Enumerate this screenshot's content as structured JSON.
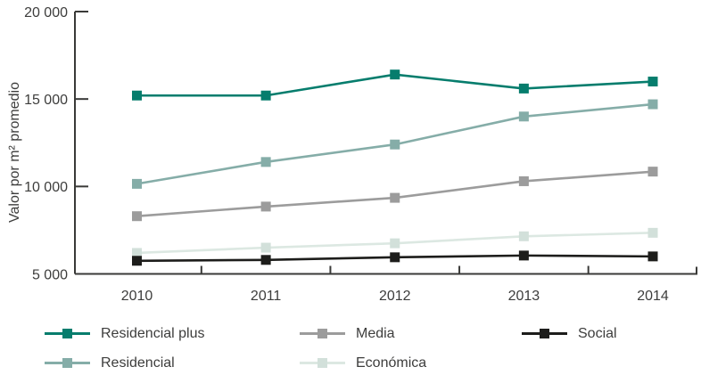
{
  "chart_data": {
    "type": "line",
    "title": "",
    "xlabel": "",
    "ylabel": "Valor por m² promedio",
    "categories": [
      "2010",
      "2011",
      "2012",
      "2013",
      "2014"
    ],
    "ylim": [
      5000,
      20000
    ],
    "yticks": {
      "values": [
        5000,
        10000,
        15000,
        20000
      ],
      "labels": [
        "5 000",
        "10 000",
        "15 000",
        "20 000"
      ]
    },
    "grid": false,
    "legend_position": "bottom",
    "marker": "square",
    "series": [
      {
        "name": "Residencial plus",
        "color": "#067d6d",
        "marker_color": "#067d6d",
        "values": [
          15200,
          15200,
          16400,
          15600,
          16000
        ]
      },
      {
        "name": "Residencial",
        "color": "#85ada8",
        "marker_color": "#85ada8",
        "values": [
          10150,
          11400,
          12400,
          14000,
          14700
        ]
      },
      {
        "name": "Media",
        "color": "#9c9c9c",
        "marker_color": "#9c9c9c",
        "values": [
          8300,
          8850,
          9350,
          10300,
          10850
        ]
      },
      {
        "name": "Económica",
        "color": "#dce8e2",
        "marker_color": "#d2e0da",
        "values": [
          6200,
          6500,
          6750,
          7150,
          7350
        ]
      },
      {
        "name": "Social",
        "color": "#1d1d1b",
        "marker_color": "#1d1d1b",
        "values": [
          5750,
          5800,
          5950,
          6050,
          6000
        ]
      }
    ],
    "axis_color": "#3a3a38",
    "text_color": "#3d3d3c"
  }
}
